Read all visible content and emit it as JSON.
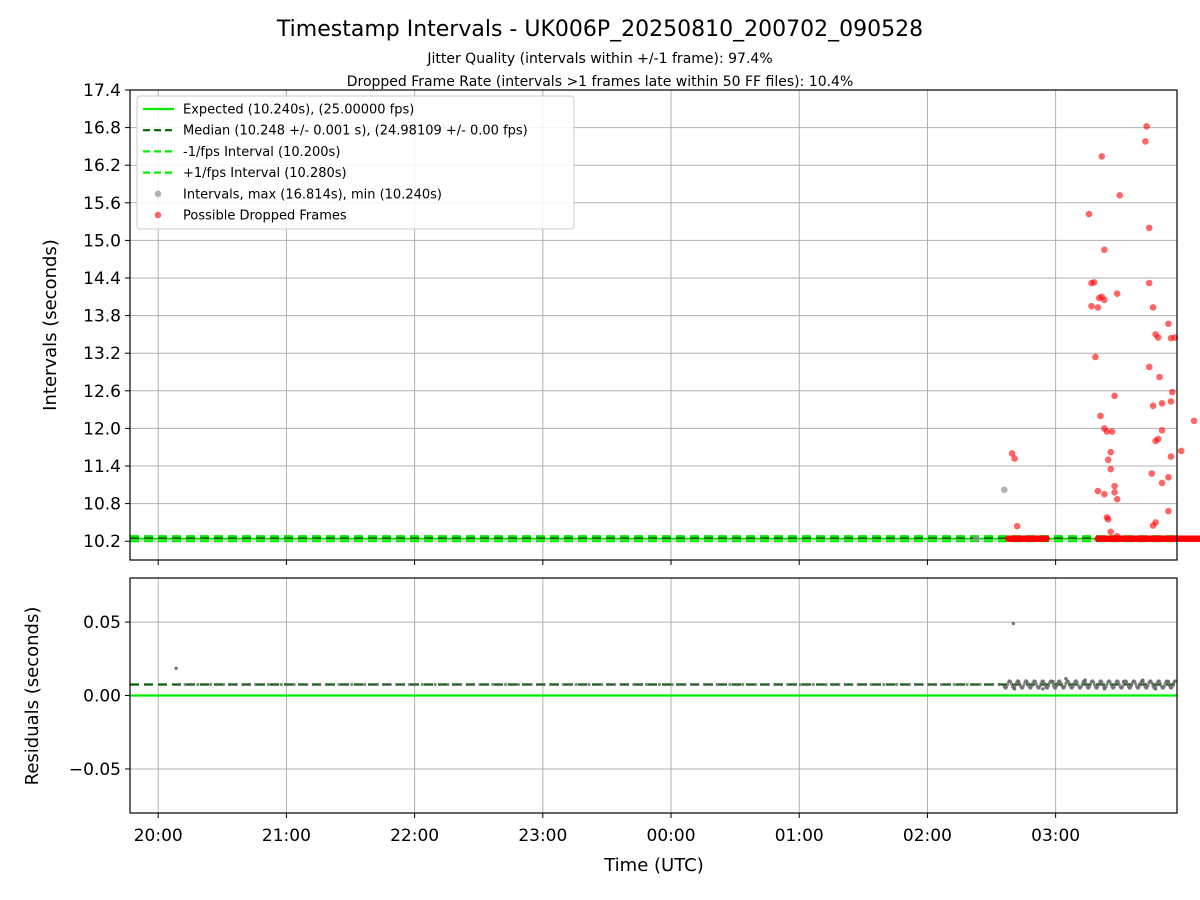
{
  "chart_data": [
    {
      "type": "scatter",
      "title": "Timestamp Intervals - UK006P_20250810_200702_090528",
      "subtitle_lines": [
        "Jitter Quality (intervals within +/-1 frame): 97.4%",
        "Dropped Frame Rate (intervals >1 frames late within 50 FF files): 10.4%"
      ],
      "xlabel": "",
      "ylabel": "Intervals (seconds)",
      "x_axis": "time",
      "x_unit": "hours (UTC)",
      "xlim": [
        "19:47",
        "03:57"
      ],
      "ylim": [
        9.9,
        17.4
      ],
      "yticks": [
        10.2,
        10.8,
        11.4,
        12.0,
        12.6,
        13.2,
        13.8,
        14.4,
        15.0,
        15.6,
        16.2,
        16.8,
        17.4
      ],
      "ytick_labels": [
        "10.2",
        "10.8",
        "11.4",
        "12.0",
        "12.6",
        "13.2",
        "13.8",
        "14.4",
        "15.0",
        "15.6",
        "16.2",
        "16.8",
        "17.4"
      ],
      "grid": "horizontal and vertical",
      "legend_position": "top-left",
      "legend": [
        "Expected (10.240s), (25.00000 fps)",
        "Median (10.248 +/- 0.001 s), (24.98109 +/- 0.00 fps)",
        "-1/fps Interval (10.200s)",
        "+1/fps Interval (10.280s)",
        "Intervals, max (16.814s), min (10.240s)",
        "Possible Dropped Frames"
      ],
      "series": [
        {
          "name": "Expected (10.240s), (25.00000 fps)",
          "type": "hline",
          "y": 10.24,
          "color": "#00ee00",
          "style": "solid"
        },
        {
          "name": "Median (10.248 +/- 0.001 s), (24.98109 +/- 0.00 fps)",
          "type": "hline",
          "y": 10.248,
          "color": "#006400",
          "style": "dashed"
        },
        {
          "name": "-1/fps Interval (10.200s)",
          "type": "hline",
          "y": 10.2,
          "color": "#00ee00",
          "style": "dashed"
        },
        {
          "name": "+1/fps Interval (10.280s)",
          "type": "hline",
          "y": 10.28,
          "color": "#00ee00",
          "style": "dashed"
        },
        {
          "name": "Intervals, max (16.814s), min (10.240s)",
          "type": "scatter",
          "color": "#999999",
          "points": [
            [
              6.82,
              11.02
            ],
            [
              6.6,
              10.24
            ]
          ]
        },
        {
          "name": "Possible Dropped Frames",
          "type": "scatter",
          "color": "#ff0000",
          "band": {
            "y": 10.24,
            "x_ranges": [
              [
                6.85,
                7.15
              ],
              [
                7.55,
                8.0
              ],
              [
                8.0,
                8.48
              ]
            ]
          },
          "points": [
            [
              6.88,
              11.6
            ],
            [
              6.9,
              11.52
            ],
            [
              6.92,
              10.44
            ],
            [
              7.48,
              15.42
            ],
            [
              7.5,
              14.32
            ],
            [
              7.52,
              14.33
            ],
            [
              7.5,
              13.95
            ],
            [
              7.55,
              13.93
            ],
            [
              7.53,
              13.14
            ],
            [
              7.56,
              14.08
            ],
            [
              7.58,
              14.1
            ],
            [
              7.6,
              14.05
            ],
            [
              7.6,
              14.85
            ],
            [
              7.58,
              16.34
            ],
            [
              7.57,
              12.2
            ],
            [
              7.6,
              12.0
            ],
            [
              7.62,
              11.95
            ],
            [
              7.63,
              11.5
            ],
            [
              7.65,
              11.62
            ],
            [
              7.65,
              11.35
            ],
            [
              7.55,
              11.0
            ],
            [
              7.6,
              10.95
            ],
            [
              7.62,
              10.58
            ],
            [
              7.63,
              10.55
            ],
            [
              7.68,
              10.98
            ],
            [
              7.68,
              11.08
            ],
            [
              7.7,
              10.87
            ],
            [
              7.65,
              10.35
            ],
            [
              7.7,
              10.28
            ],
            [
              7.68,
              12.52
            ],
            [
              7.66,
              11.95
            ],
            [
              7.7,
              14.15
            ],
            [
              7.72,
              15.72
            ],
            [
              7.55,
              10.24
            ],
            [
              7.93,
              16.82
            ],
            [
              7.92,
              16.58
            ],
            [
              7.95,
              15.2
            ],
            [
              7.95,
              14.32
            ],
            [
              7.98,
              13.93
            ],
            [
              8.0,
              13.5
            ],
            [
              8.02,
              13.45
            ],
            [
              7.95,
              12.98
            ],
            [
              8.03,
              12.82
            ],
            [
              7.98,
              12.36
            ],
            [
              8.05,
              12.4
            ],
            [
              8.0,
              11.8
            ],
            [
              8.02,
              11.83
            ],
            [
              8.05,
              11.97
            ],
            [
              7.97,
              11.28
            ],
            [
              8.1,
              11.22
            ],
            [
              8.05,
              11.13
            ],
            [
              8.1,
              10.68
            ],
            [
              7.98,
              10.45
            ],
            [
              8.0,
              10.5
            ],
            [
              8.12,
              13.44
            ],
            [
              8.1,
              13.67
            ],
            [
              8.15,
              13.45
            ],
            [
              8.13,
              12.58
            ],
            [
              8.12,
              12.43
            ],
            [
              8.12,
              11.55
            ],
            [
              8.2,
              11.64
            ],
            [
              8.3,
              12.12
            ],
            [
              7.9,
              10.24
            ]
          ]
        }
      ]
    },
    {
      "type": "scatter",
      "xlabel": "Time (UTC)",
      "ylabel": "Residuals (seconds)",
      "x_axis": "time",
      "xlim": [
        "19:47",
        "03:57"
      ],
      "xticks": [
        0.22,
        1.22,
        2.22,
        3.22,
        4.22,
        5.22,
        6.22,
        7.22
      ],
      "xtick_labels": [
        "20:00",
        "21:00",
        "22:00",
        "23:00",
        "00:00",
        "01:00",
        "02:00",
        "03:00"
      ],
      "ylim": [
        -0.08,
        0.08
      ],
      "yticks": [
        -0.05,
        0.0,
        0.05
      ],
      "ytick_labels": [
        "−0.05",
        "0.00",
        "0.05"
      ],
      "grid": "horizontal and vertical",
      "series": [
        {
          "name": "Expected (10.240s), (25.00000 fps)",
          "type": "hline",
          "y": 0.0,
          "color": "#00ee00",
          "style": "solid"
        },
        {
          "name": "Median (10.248 +/- 0.001 s), (24.98109 +/- 0.00 fps)",
          "type": "hline",
          "y": 0.0075,
          "color": "#006400",
          "style": "dashed"
        },
        {
          "name": "Intervals, max (16.814s), min (10.240s)",
          "type": "scatter",
          "color": "#666666",
          "band": {
            "y": 0.0075,
            "x_ranges": [
              [
                0.38,
                6.82
              ],
              [
                6.82,
                8.16
              ]
            ]
          },
          "points": [
            [
              0.36,
              0.0185
            ],
            [
              6.89,
              0.049
            ],
            [
              6.9,
              0.0045
            ],
            [
              6.93,
              0.0095
            ],
            [
              7.12,
              0.0045
            ],
            [
              7.2,
              0.0095
            ],
            [
              7.3,
              0.0115
            ],
            [
              7.45,
              0.0105
            ],
            [
              7.6,
              0.0045
            ],
            [
              7.75,
              0.0095
            ],
            [
              7.9,
              0.0105
            ],
            [
              8.0,
              0.0045
            ],
            [
              8.1,
              0.0095
            ]
          ]
        }
      ]
    }
  ],
  "colors": {
    "expected": "#00ee00",
    "median": "#006400",
    "interval_points": "#999999",
    "dropped_frames": "#ff0000",
    "residual_points": "#666666",
    "grid": "#b0b0b0"
  }
}
